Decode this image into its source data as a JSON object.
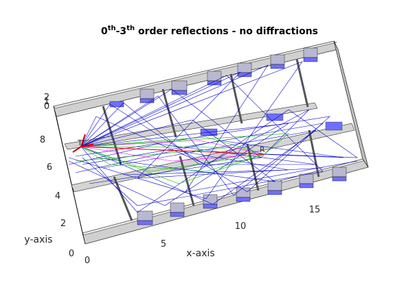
{
  "title": {
    "prefix": "0",
    "sup1": "th",
    "middle": "-3",
    "sup2": "th",
    "suffix": " order reflections - no diffractions"
  },
  "axes": {
    "xlabel": "x-axis",
    "ylabel": "y-axis",
    "xticks": [
      "0",
      "5",
      "10",
      "15"
    ],
    "yticks": [
      "0",
      "2",
      "4",
      "6",
      "8"
    ],
    "zticks": [
      "0",
      "1",
      "2"
    ]
  },
  "markers": {
    "transmitter": "T",
    "receiver": "R"
  },
  "colors": {
    "walls": "#c8c8c8",
    "wall_edge": "#000000",
    "windows": "#6f6fff",
    "ray_0": "#ff0000",
    "ray_1": "#ff00ff",
    "ray_2": "#00b000",
    "ray_3": "#0000c8"
  }
}
